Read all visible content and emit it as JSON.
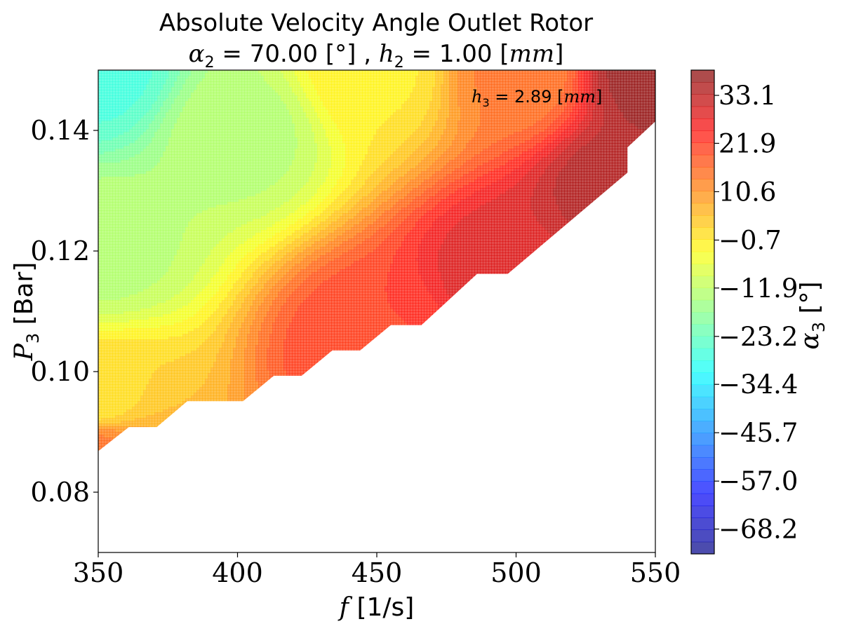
{
  "chart_data": {
    "type": "heatmap",
    "title": "Absolute Velocity Angle Outlet Rotor",
    "subtitle": {
      "alpha_symbol": "α",
      "alpha_sub": "2",
      "alpha_value": " = 70.00 [°] , ",
      "h_symbol": "h",
      "h_sub": "2",
      "h_value": " = 1.00 [",
      "h_unit": "mm",
      "h_close": "]"
    },
    "annotation": {
      "symbol": "h",
      "sub": "3",
      "value": " = 2.89 [",
      "unit": "mm",
      "close": "]"
    },
    "xlabel": {
      "symbol": "f",
      "unit": " [1/s]"
    },
    "ylabel": {
      "symbol": "P",
      "sub": "3",
      "unit": " [Bar]"
    },
    "colorbar_label": {
      "symbol": "α",
      "sub": "3",
      "unit": " [°]"
    },
    "xlim": [
      350,
      550
    ],
    "ylim": [
      0.07,
      0.15
    ],
    "xticks": [
      350,
      400,
      450,
      500,
      550
    ],
    "xtick_labels": [
      "350",
      "400",
      "450",
      "500",
      "550"
    ],
    "yticks": [
      0.08,
      0.1,
      0.12,
      0.14
    ],
    "ytick_labels": [
      "0.08",
      "0.10",
      "0.12",
      "0.14"
    ],
    "colorbar_range": [
      -74.0,
      39.0
    ],
    "colorbar_ticks": [
      33.1,
      21.9,
      10.6,
      -0.7,
      -11.9,
      -23.2,
      -34.4,
      -45.7,
      -57.0,
      -68.2
    ],
    "colorbar_tick_labels": [
      "33.1",
      "21.9",
      "10.6",
      "−0.7",
      "−11.9",
      "−23.2",
      "−34.4",
      "−45.7",
      "−57.0",
      "−68.2"
    ],
    "colormap": "jet",
    "alpha": 0.7,
    "field_samples": [
      {
        "f": 350,
        "P": 0.15,
        "alpha3": -27
      },
      {
        "f": 350,
        "P": 0.12,
        "alpha3": -13
      },
      {
        "f": 350,
        "P": 0.095,
        "alpha3": 1
      },
      {
        "f": 350,
        "P": 0.087,
        "alpha3": 14
      },
      {
        "f": 400,
        "P": 0.14,
        "alpha3": -13
      },
      {
        "f": 450,
        "P": 0.15,
        "alpha3": -1
      },
      {
        "f": 450,
        "P": 0.104,
        "alpha3": 22
      },
      {
        "f": 500,
        "P": 0.15,
        "alpha3": 14
      },
      {
        "f": 500,
        "P": 0.116,
        "alpha3": 30
      },
      {
        "f": 540,
        "P": 0.13,
        "alpha3": 36
      },
      {
        "f": 550,
        "P": 0.15,
        "alpha3": 38
      }
    ],
    "valid_region_boundary": [
      [
        350,
        0.0868
      ],
      [
        361,
        0.0908
      ],
      [
        371,
        0.0908
      ],
      [
        382,
        0.0951
      ],
      [
        402,
        0.0951
      ],
      [
        413,
        0.0993
      ],
      [
        423,
        0.0993
      ],
      [
        434,
        0.1035
      ],
      [
        444,
        0.1035
      ],
      [
        455,
        0.1077
      ],
      [
        466,
        0.1077
      ],
      [
        486,
        0.1162
      ],
      [
        497,
        0.1162
      ],
      [
        540,
        0.133
      ],
      [
        540,
        0.1372
      ],
      [
        550,
        0.1415
      ]
    ]
  }
}
